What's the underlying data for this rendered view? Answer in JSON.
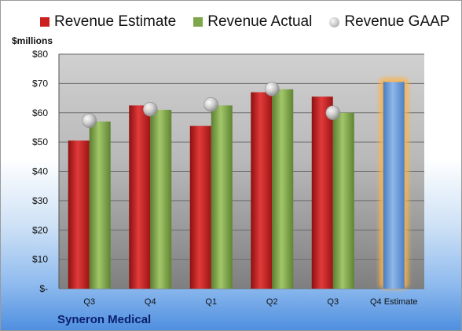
{
  "chart_data": {
    "type": "bar",
    "unit_label": "$millions",
    "categories": [
      "Q3",
      "Q4",
      "Q1",
      "Q2",
      "Q3",
      "Q4 Estimate"
    ],
    "series": [
      {
        "name": "Revenue Estimate",
        "values": [
          50.5,
          62.5,
          55.5,
          67,
          65.5,
          70.5
        ],
        "color": "#cc2020"
      },
      {
        "name": "Revenue Actual",
        "values": [
          57,
          61,
          62.5,
          68,
          60,
          null
        ],
        "color": "#7ea64a"
      },
      {
        "name": "Revenue GAAP",
        "values": [
          57.3,
          61.2,
          62.8,
          68.1,
          60.0,
          null
        ],
        "color": "#c8c8c8"
      }
    ],
    "estimate_color": "#6e9fd8",
    "yticks": [
      "$-",
      "$10",
      "$20",
      "$30",
      "$40",
      "$50",
      "$60",
      "$70",
      "$80"
    ],
    "ylim": [
      0,
      80
    ],
    "grid": true,
    "legend": "top"
  },
  "legend": {
    "estimate": "Revenue Estimate",
    "actual": "Revenue Actual",
    "gaap": "Revenue GAAP"
  },
  "company": "Syneron Medical"
}
